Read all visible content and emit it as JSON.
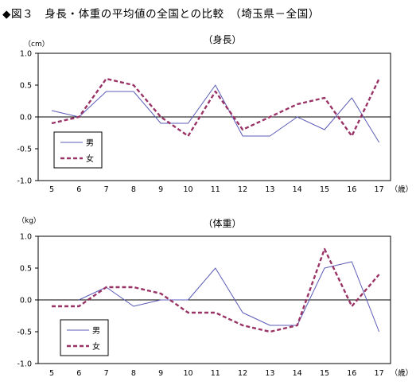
{
  "figure_title": "◆図３　身長・体重の平均値の全国との比較　（埼玉県－全国）",
  "chart_data": [
    {
      "type": "line",
      "title": "（身長）",
      "unit": "（cm）",
      "x_suffix": "（歳）",
      "categories": [
        "5",
        "6",
        "7",
        "8",
        "9",
        "10",
        "11",
        "12",
        "13",
        "14",
        "15",
        "16",
        "17"
      ],
      "ylim": [
        -1.0,
        1.0
      ],
      "yticks": [
        "1.0",
        "0.5",
        "0.0",
        "-0.5",
        "-1.0"
      ],
      "grid": false,
      "legend_position": "bottom-left",
      "series": [
        {
          "name": "男",
          "color": "#5b5bb7",
          "dash": "solid",
          "values": [
            0.1,
            0.0,
            0.4,
            0.4,
            -0.1,
            -0.1,
            0.5,
            -0.3,
            -0.3,
            0.0,
            -0.2,
            0.3,
            -0.4
          ]
        },
        {
          "name": "女",
          "color": "#993366",
          "dash": "dashed",
          "values": [
            -0.1,
            0.0,
            0.6,
            0.5,
            0.0,
            -0.3,
            0.4,
            -0.2,
            0.0,
            0.2,
            0.3,
            -0.3,
            0.6
          ]
        }
      ]
    },
    {
      "type": "line",
      "title": "（体重）",
      "unit": "（kg）",
      "x_suffix": "（歳）",
      "categories": [
        "5",
        "6",
        "7",
        "8",
        "9",
        "10",
        "11",
        "12",
        "13",
        "14",
        "15",
        "16",
        "17"
      ],
      "ylim": [
        -1.0,
        1.0
      ],
      "yticks": [
        "1.0",
        "0.5",
        "0.0",
        "-0.5",
        "-1.0"
      ],
      "grid": false,
      "legend_position": "bottom-left",
      "series": [
        {
          "name": "男",
          "color": "#5b5bb7",
          "dash": "solid",
          "values": [
            null,
            0.0,
            0.2,
            -0.1,
            0.0,
            0.0,
            0.5,
            -0.2,
            -0.4,
            -0.4,
            0.5,
            0.6,
            -0.5
          ]
        },
        {
          "name": "女",
          "color": "#993366",
          "dash": "dashed",
          "values": [
            -0.1,
            -0.1,
            0.2,
            0.2,
            0.1,
            -0.2,
            -0.2,
            -0.4,
            -0.5,
            -0.4,
            0.8,
            -0.1,
            0.4
          ]
        }
      ]
    }
  ]
}
